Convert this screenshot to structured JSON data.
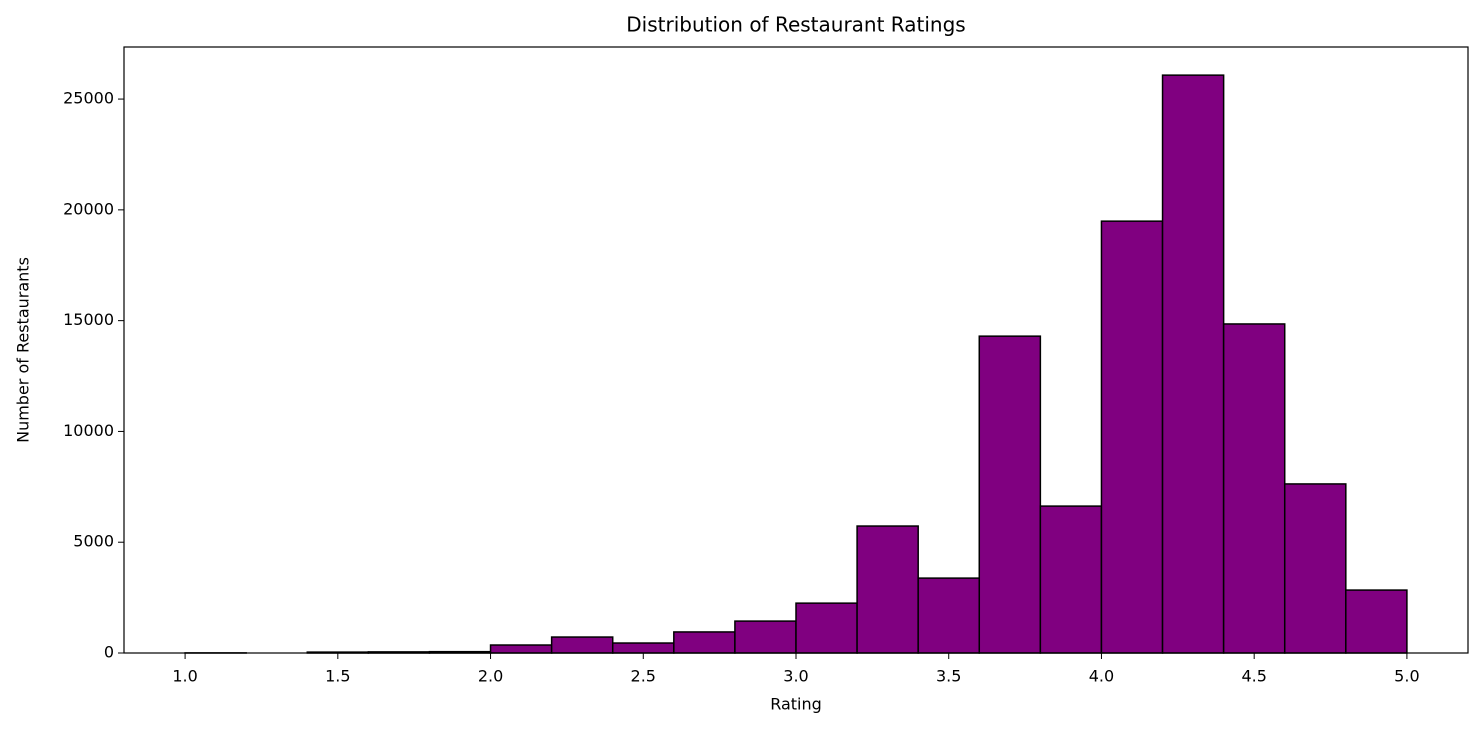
{
  "chart_data": {
    "type": "histogram",
    "title": "Distribution of Restaurant Ratings",
    "xlabel": "Rating",
    "ylabel": "Number of Restaurants",
    "bins": [
      1.0,
      1.2,
      1.4,
      1.6,
      1.8,
      2.0,
      2.2,
      2.4,
      2.6,
      2.8,
      3.0,
      3.2,
      3.4,
      3.6,
      3.8,
      4.0,
      4.2,
      4.4,
      4.6,
      4.8,
      5.0
    ],
    "counts": [
      5,
      0,
      40,
      50,
      60,
      360,
      720,
      450,
      950,
      1440,
      2250,
      5730,
      3380,
      14300,
      6630,
      19490,
      26080,
      14850,
      7630,
      2840
    ],
    "color": "#800080",
    "edgecolor": "#000000",
    "xlim": [
      0.8,
      5.2
    ],
    "xticks": [
      {
        "value": 1.0,
        "label": "1.0"
      },
      {
        "value": 1.5,
        "label": "1.5"
      },
      {
        "value": 2.0,
        "label": "2.0"
      },
      {
        "value": 2.5,
        "label": "2.5"
      },
      {
        "value": 3.0,
        "label": "3.0"
      },
      {
        "value": 3.5,
        "label": "3.5"
      },
      {
        "value": 4.0,
        "label": "4.0"
      },
      {
        "value": 4.5,
        "label": "4.5"
      },
      {
        "value": 5.0,
        "label": "5.0"
      }
    ],
    "ylim": [
      0,
      27350
    ],
    "yticks": [
      0,
      5000,
      10000,
      15000,
      20000,
      25000
    ],
    "grid": false
  }
}
